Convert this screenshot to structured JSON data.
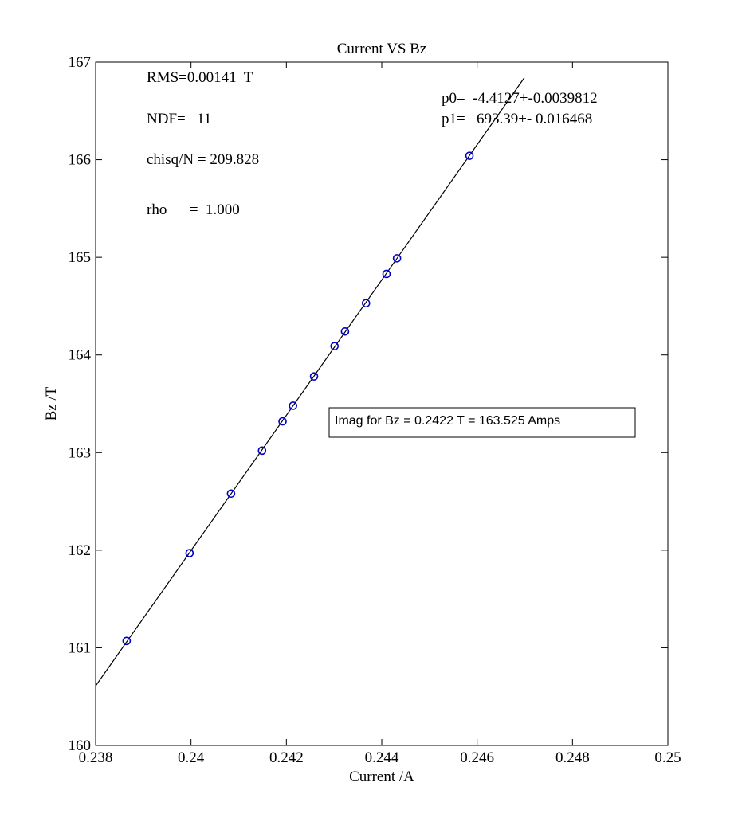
{
  "chart_data": {
    "type": "scatter",
    "title": "Current VS Bz",
    "xlabel": "Current /A",
    "ylabel": "Bz /T",
    "xlim": [
      0.238,
      0.25
    ],
    "ylim": [
      160,
      167
    ],
    "xticks": [
      0.238,
      0.24,
      0.242,
      0.244,
      0.246,
      0.248,
      0.25
    ],
    "xtick_labels": [
      "0.238",
      "0.24",
      "0.242",
      "0.244",
      "0.246",
      "0.248",
      "0.25"
    ],
    "yticks": [
      160,
      161,
      162,
      163,
      164,
      165,
      166,
      167
    ],
    "ytick_labels": [
      "160",
      "161",
      "162",
      "163",
      "164",
      "165",
      "166",
      "167"
    ],
    "grid": false,
    "series": [
      {
        "marker_color": "#0000cc",
        "points": [
          {
            "x": 0.23865,
            "y": 161.07
          },
          {
            "x": 0.23997,
            "y": 161.97
          },
          {
            "x": 0.24084,
            "y": 162.58
          },
          {
            "x": 0.24149,
            "y": 163.02
          },
          {
            "x": 0.24192,
            "y": 163.32
          },
          {
            "x": 0.24214,
            "y": 163.48
          },
          {
            "x": 0.24258,
            "y": 163.78
          },
          {
            "x": 0.24301,
            "y": 164.09
          },
          {
            "x": 0.24323,
            "y": 164.24
          },
          {
            "x": 0.24367,
            "y": 164.53
          },
          {
            "x": 0.2441,
            "y": 164.83
          },
          {
            "x": 0.24432,
            "y": 164.99
          },
          {
            "x": 0.24584,
            "y": 166.04
          }
        ]
      }
    ],
    "fit_line": {
      "color": "#000000",
      "start": {
        "x": 0.238,
        "y": 160.61
      },
      "end": {
        "x": 0.24699,
        "y": 166.84
      }
    },
    "annotations": [
      {
        "key": "rms",
        "text": "RMS=0.00141  T"
      },
      {
        "key": "ndf",
        "text": "NDF=   11"
      },
      {
        "key": "chisq",
        "text": "chisq/N = 209.828"
      },
      {
        "key": "rho",
        "text": "rho      =  1.000"
      },
      {
        "key": "p0",
        "text": "p0=  -4.4127+-0.0039812"
      },
      {
        "key": "p1",
        "text": "p1=   693.39+- 0.016468"
      }
    ],
    "box_label": "Imag for Bz = 0.2422 T = 163.525 Amps"
  }
}
